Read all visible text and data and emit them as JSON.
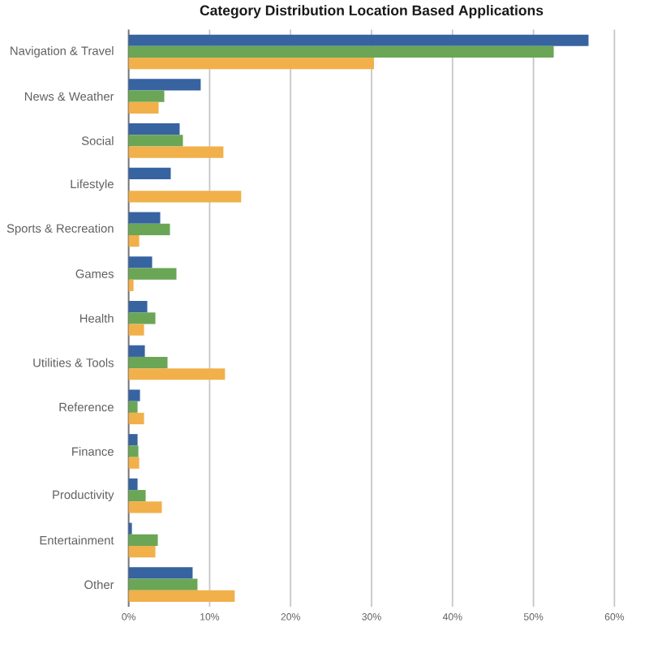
{
  "chart_data": {
    "type": "bar",
    "orientation": "horizontal",
    "title": "Category Distribution Location Based Applications",
    "categories": [
      "Navigation & Travel",
      "News & Weather",
      "Social",
      "Lifestyle",
      "Sports & Recreation",
      "Games",
      "Health",
      "Utilities & Tools",
      "Reference",
      "Finance",
      "Productivity",
      "Entertainment",
      "Other"
    ],
    "series": [
      {
        "color": "#3763a1",
        "values": [
          56.8,
          8.9,
          6.3,
          5.2,
          3.9,
          2.9,
          2.3,
          2.0,
          1.4,
          1.1,
          1.1,
          0.4,
          7.9
        ]
      },
      {
        "color": "#6aa656",
        "values": [
          52.5,
          4.4,
          6.7,
          0,
          5.1,
          5.9,
          3.3,
          4.8,
          1.1,
          1.2,
          2.1,
          3.6,
          8.5
        ]
      },
      {
        "color": "#f1b04a",
        "values": [
          30.3,
          3.7,
          11.7,
          13.9,
          1.3,
          0.6,
          1.9,
          11.9,
          1.9,
          1.3,
          4.1,
          3.3,
          13.1
        ]
      }
    ],
    "xlim": [
      0,
      60
    ],
    "xticks": [
      {
        "value": 0,
        "label": "0%"
      },
      {
        "value": 10,
        "label": "10%"
      },
      {
        "value": 20,
        "label": "20%"
      },
      {
        "value": 30,
        "label": "30%"
      },
      {
        "value": 40,
        "label": "40%"
      },
      {
        "value": 50,
        "label": "50%"
      },
      {
        "value": 60,
        "label": "60%"
      }
    ],
    "grid": "x"
  }
}
